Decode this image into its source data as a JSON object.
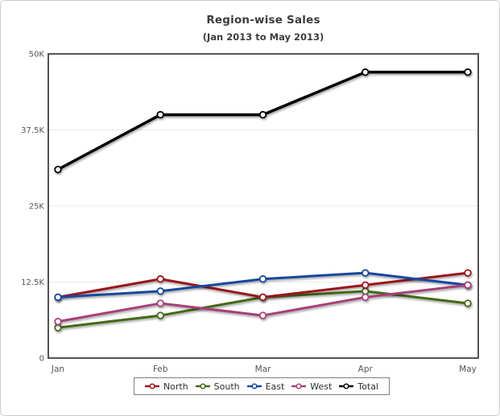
{
  "chart_data": {
    "type": "line",
    "title": "Region-wise Sales",
    "subtitle": "(Jan 2013 to May 2013)",
    "categories": [
      "Jan",
      "Feb",
      "Mar",
      "Apr",
      "May"
    ],
    "series": [
      {
        "name": "North",
        "color": "#9a151a",
        "values": [
          10000,
          13000,
          10000,
          12000,
          14000
        ]
      },
      {
        "name": "South",
        "color": "#426918",
        "values": [
          5000,
          7000,
          10000,
          11000,
          9000
        ]
      },
      {
        "name": "East",
        "color": "#19469e",
        "values": [
          10000,
          11000,
          13000,
          14000,
          12000
        ]
      },
      {
        "name": "West",
        "color": "#a74178",
        "values": [
          6000,
          9000,
          7000,
          10000,
          12000
        ]
      },
      {
        "name": "Total",
        "color": "#000000",
        "values": [
          31000,
          40000,
          40000,
          47000,
          47000
        ]
      }
    ],
    "ylim": [
      0,
      50000
    ],
    "yticks": [
      {
        "v": 0,
        "label": "0"
      },
      {
        "v": 12500,
        "label": "12.5K"
      },
      {
        "v": 25000,
        "label": "25K"
      },
      {
        "v": 37500,
        "label": "37.5K"
      },
      {
        "v": 50000,
        "label": "50K"
      }
    ],
    "legend_position": "bottom",
    "grid": "horizontal-only"
  },
  "colors": {
    "axis_border": "#545454",
    "gridline": "#e9e9e9",
    "tick_text": "#545454",
    "title_text": "#3c3c3c",
    "legend_border": "#808080",
    "canvas_border": "#cccccc",
    "marker_fill": "#ffffff"
  }
}
